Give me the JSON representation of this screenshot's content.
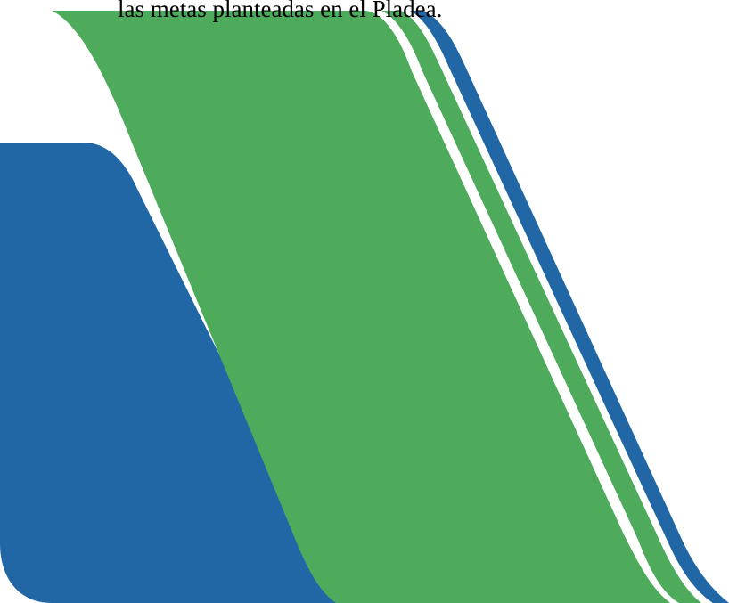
{
  "document": {
    "text_line": "las metas planteadas en el Pladea."
  },
  "decoration": {
    "description_colors": {
      "blue": "#2167a6",
      "green": "#4dab5b",
      "background": "#ffffff"
    }
  }
}
